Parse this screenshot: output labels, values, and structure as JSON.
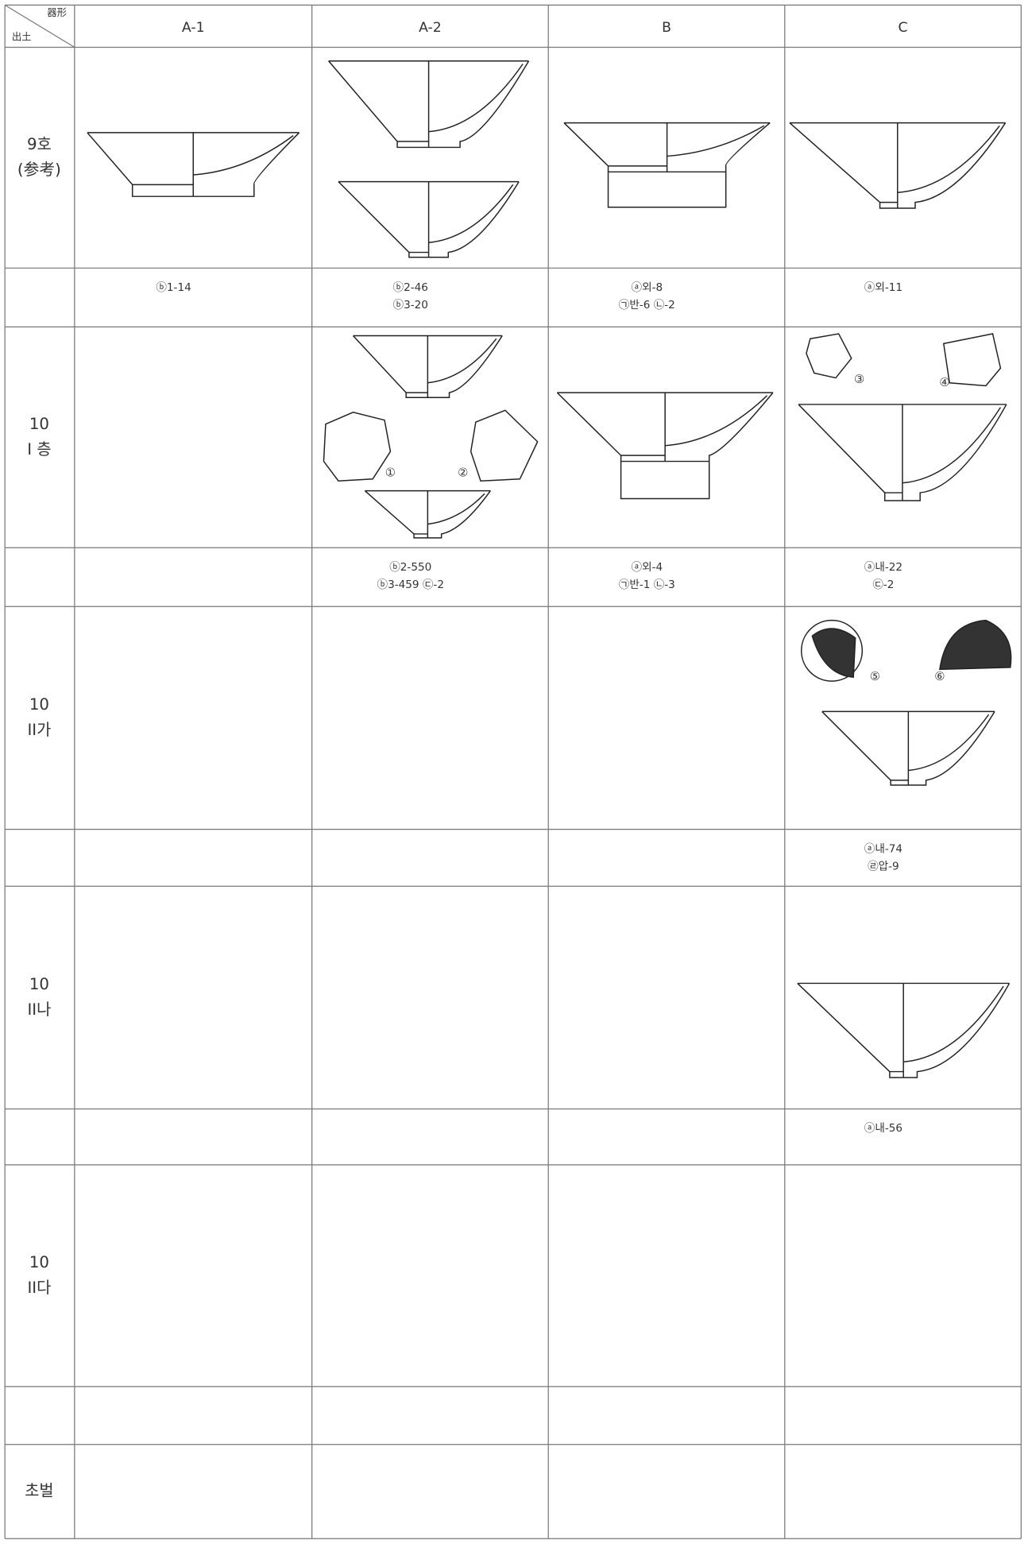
{
  "header": {
    "corner_top": "器形",
    "corner_bottom": "出土",
    "columns": [
      "A-1",
      "A-2",
      "B",
      "C"
    ]
  },
  "rows": [
    {
      "label": [
        "9호",
        "(参考)"
      ],
      "captions": {
        "A-1": [
          "ⓑ1-14"
        ],
        "A-2": [
          "ⓑ2-46",
          "ⓑ3-20"
        ],
        "B": [
          "ⓐ외-8",
          "㉠반-6   ㉡-2"
        ],
        "C": [
          "ⓐ외-11"
        ]
      }
    },
    {
      "label": [
        "10",
        "I 층"
      ],
      "captions": {
        "A-2": [
          "ⓑ2-550",
          "ⓑ3-459   ㉢-2"
        ],
        "B": [
          "ⓐ외-4",
          "㉠반-1   ㉡-3"
        ],
        "C": [
          "ⓐ내-22",
          "㉢-2"
        ]
      }
    },
    {
      "label": [
        "10",
        "II가"
      ],
      "captions": {
        "C": [
          "ⓐ내-74",
          "㉣압-9"
        ]
      }
    },
    {
      "label": [
        "10",
        "II나"
      ],
      "captions": {
        "C": [
          "ⓐ내-56"
        ]
      }
    },
    {
      "label": [
        "10",
        "II다"
      ],
      "captions": {}
    },
    {
      "label": [
        "초벌"
      ]
    }
  ],
  "fragment_labels": [
    "①",
    "②",
    "③",
    "④",
    "⑤",
    "⑥"
  ]
}
